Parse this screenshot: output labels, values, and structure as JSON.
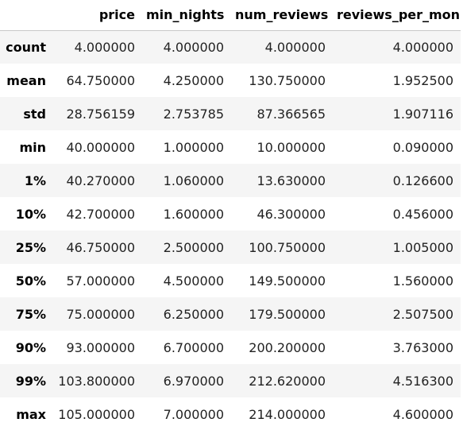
{
  "table": {
    "columns": [
      "",
      "price",
      "min_nights",
      "num_reviews",
      "reviews_per_mon"
    ],
    "rows": [
      {
        "label": "count",
        "values": [
          "4.000000",
          "4.000000",
          "4.000000",
          "4.000000"
        ]
      },
      {
        "label": "mean",
        "values": [
          "64.750000",
          "4.250000",
          "130.750000",
          "1.952500"
        ]
      },
      {
        "label": "std",
        "values": [
          "28.756159",
          "2.753785",
          "87.366565",
          "1.907116"
        ]
      },
      {
        "label": "min",
        "values": [
          "40.000000",
          "1.000000",
          "10.000000",
          "0.090000"
        ]
      },
      {
        "label": "1%",
        "values": [
          "40.270000",
          "1.060000",
          "13.630000",
          "0.126600"
        ]
      },
      {
        "label": "10%",
        "values": [
          "42.700000",
          "1.600000",
          "46.300000",
          "0.456000"
        ]
      },
      {
        "label": "25%",
        "values": [
          "46.750000",
          "2.500000",
          "100.750000",
          "1.005000"
        ]
      },
      {
        "label": "50%",
        "values": [
          "57.000000",
          "4.500000",
          "149.500000",
          "1.560000"
        ]
      },
      {
        "label": "75%",
        "values": [
          "75.000000",
          "6.250000",
          "179.500000",
          "2.507500"
        ]
      },
      {
        "label": "90%",
        "values": [
          "93.000000",
          "6.700000",
          "200.200000",
          "3.763000"
        ]
      },
      {
        "label": "99%",
        "values": [
          "103.800000",
          "6.970000",
          "212.620000",
          "4.516300"
        ]
      },
      {
        "label": "max",
        "values": [
          "105.000000",
          "7.000000",
          "214.000000",
          "4.600000"
        ]
      }
    ]
  },
  "colors": {
    "stripe": "#f5f5f5",
    "header_rule": "#c8c8c8",
    "text": "#000000"
  }
}
